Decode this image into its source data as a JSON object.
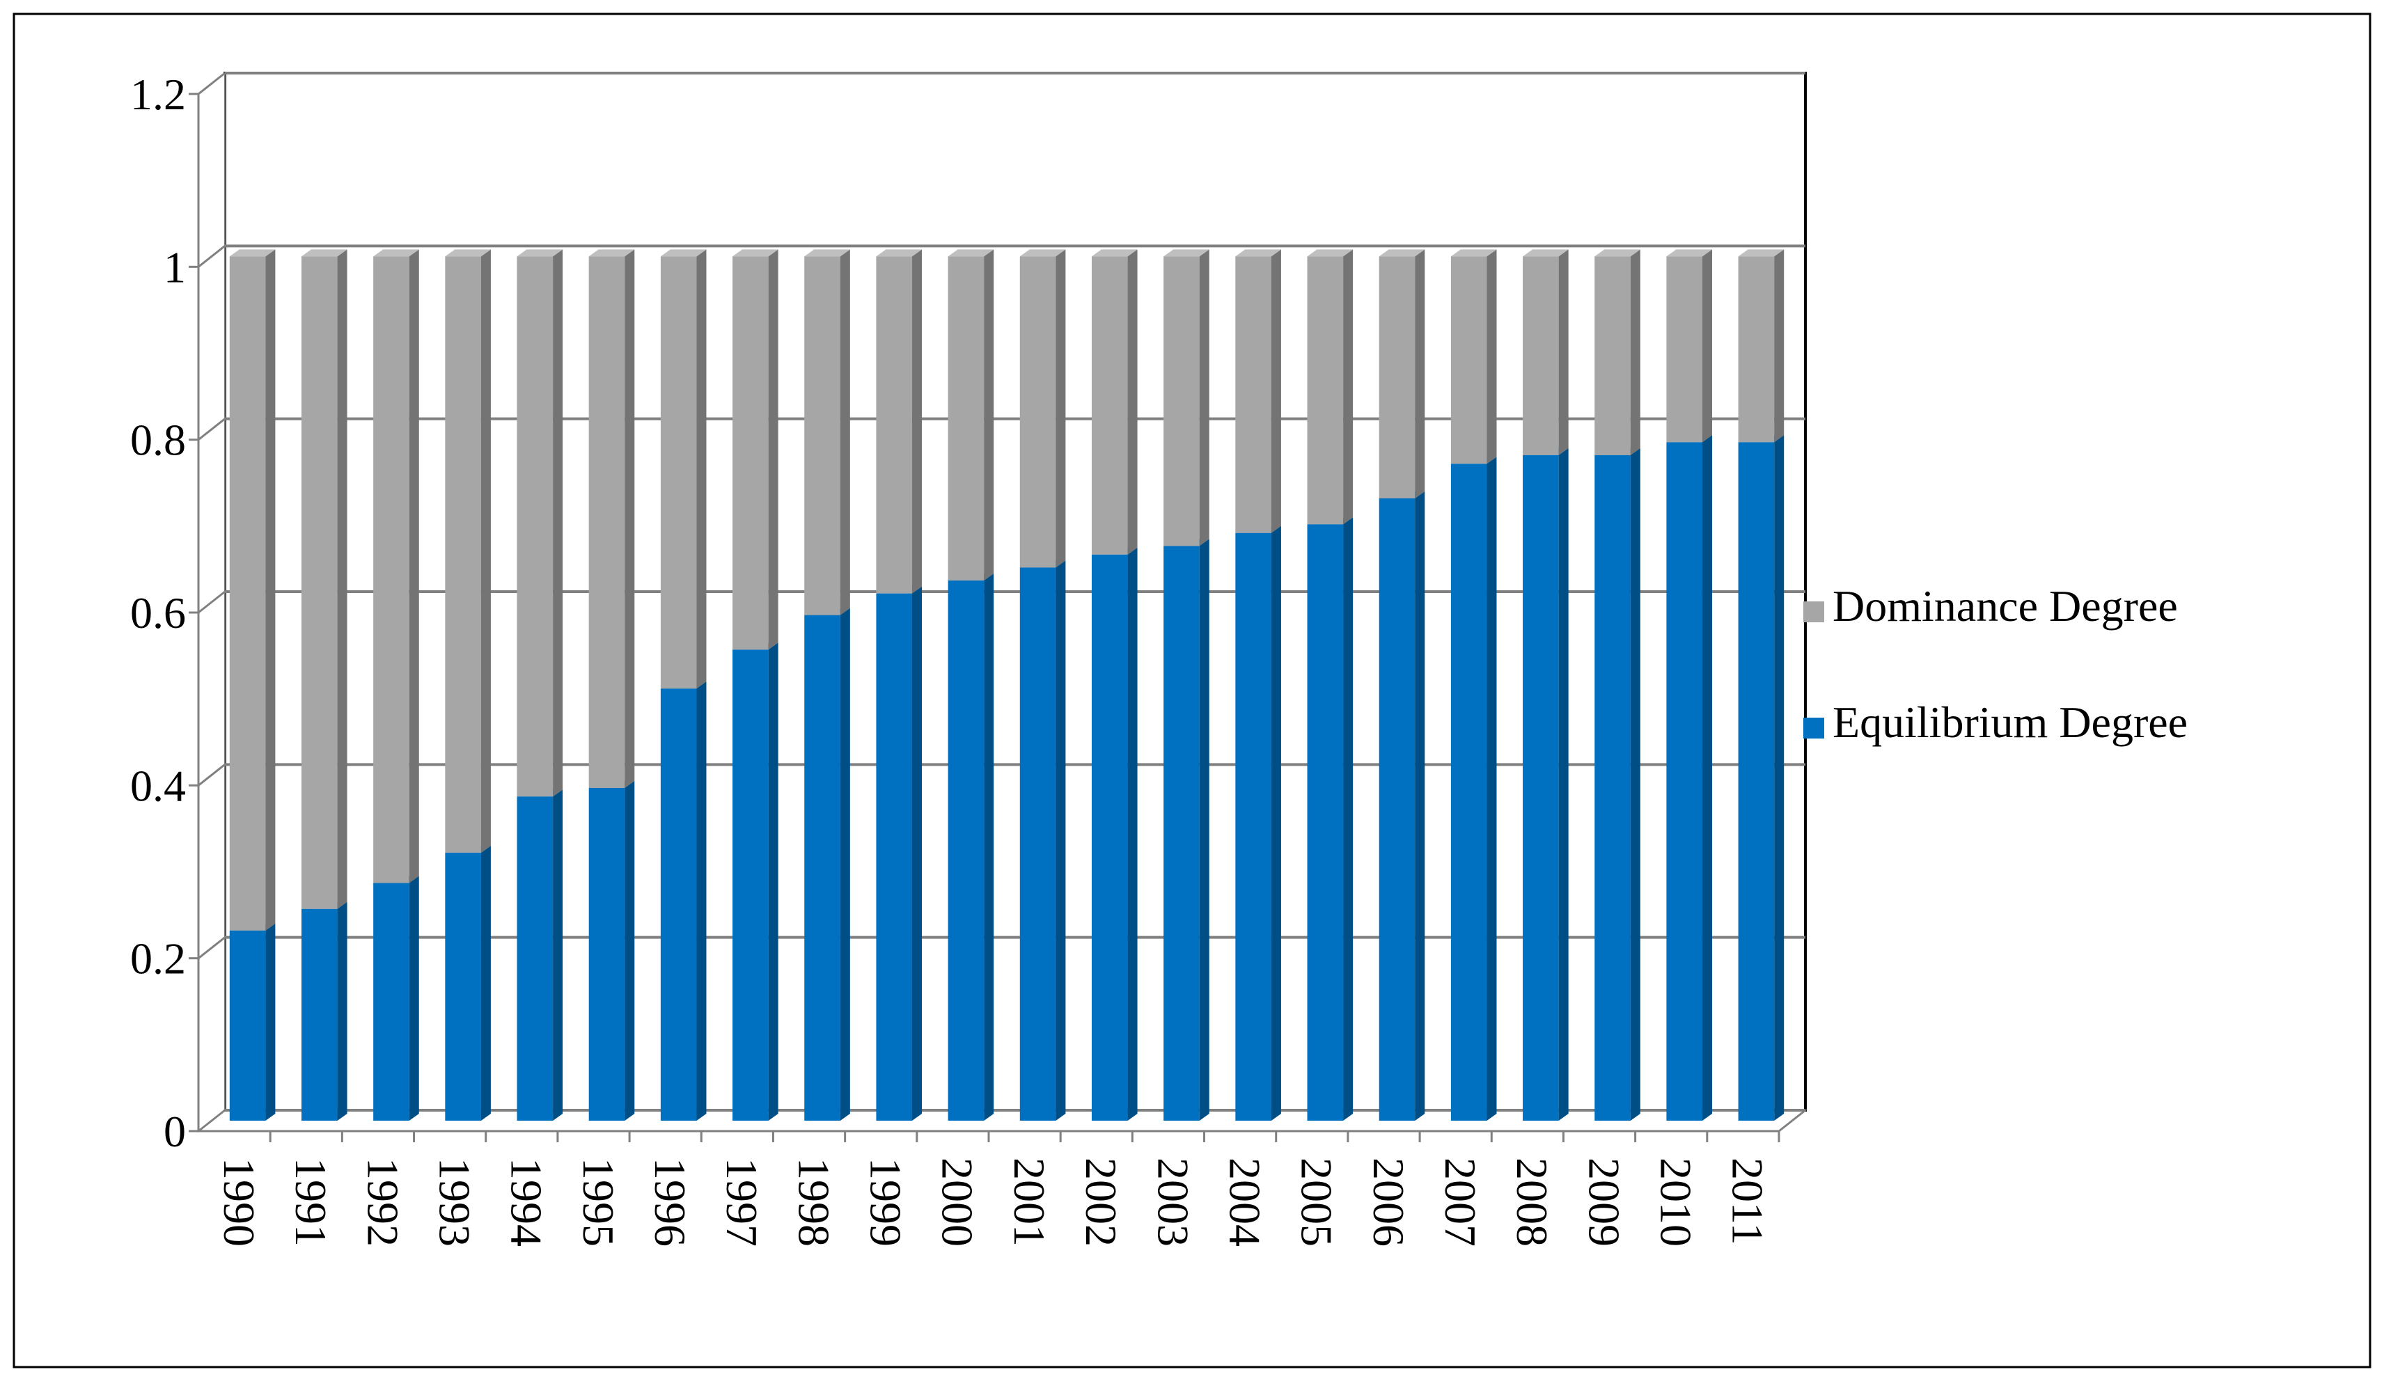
{
  "chart_data": {
    "type": "bar",
    "stacked": true,
    "three_d": true,
    "title": "",
    "xlabel": "",
    "ylabel": "",
    "ylim": [
      0,
      1.2
    ],
    "yticks": [
      "0",
      "0.2",
      "0.4",
      "0.6",
      "0.8",
      "1",
      "1.2"
    ],
    "ytick_values": [
      0,
      0.2,
      0.4,
      0.6,
      0.8,
      1.0,
      1.2
    ],
    "grid": true,
    "legend_position": "right",
    "categories": [
      "1990",
      "1991",
      "1992",
      "1993",
      "1994",
      "1995",
      "1996",
      "1997",
      "1998",
      "1999",
      "2000",
      "2001",
      "2002",
      "2003",
      "2004",
      "2005",
      "2006",
      "2007",
      "2008",
      "2009",
      "2010",
      "2011"
    ],
    "series": [
      {
        "name": "Equilibrium Degree",
        "color": "#0070C0",
        "values": [
          0.22,
          0.245,
          0.275,
          0.31,
          0.375,
          0.385,
          0.5,
          0.545,
          0.585,
          0.61,
          0.625,
          0.64,
          0.655,
          0.665,
          0.68,
          0.69,
          0.72,
          0.76,
          0.77,
          0.77,
          0.785,
          0.785
        ]
      },
      {
        "name": "Dominance Degree",
        "color": "#A6A6A6",
        "values": [
          0.78,
          0.755,
          0.725,
          0.69,
          0.625,
          0.615,
          0.5,
          0.455,
          0.415,
          0.39,
          0.375,
          0.36,
          0.345,
          0.335,
          0.32,
          0.31,
          0.28,
          0.24,
          0.23,
          0.23,
          0.215,
          0.215
        ]
      }
    ],
    "legend": [
      {
        "label": "Dominance Degree",
        "color": "#A6A6A6"
      },
      {
        "label": "Equilibrium Degree",
        "color": "#0070C0"
      }
    ]
  }
}
